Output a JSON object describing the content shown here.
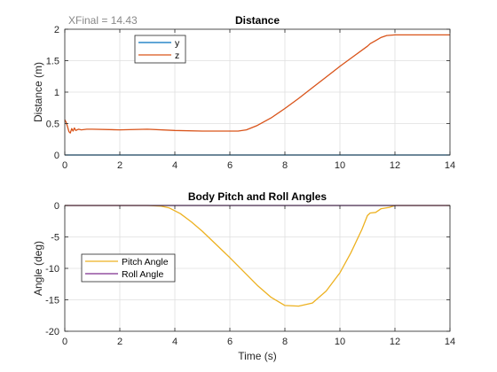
{
  "chart_data": [
    {
      "type": "line",
      "title": "Distance",
      "annotation": "XFinal = 14.43",
      "xlabel": "",
      "ylabel": "Distance (m)",
      "xlim": [
        0,
        14
      ],
      "ylim": [
        0,
        2
      ],
      "xticks": [
        "0",
        "2",
        "4",
        "6",
        "8",
        "10",
        "12",
        "14"
      ],
      "yticks": [
        "0",
        "0.5",
        "1",
        "1.5",
        "2"
      ],
      "grid": true,
      "legend_location": "top-left",
      "series": [
        {
          "name": "y",
          "color": "#0072bd",
          "x": [
            0,
            14
          ],
          "y": [
            0,
            0
          ]
        },
        {
          "name": "z",
          "color": "#d95319",
          "x": [
            0,
            0.05,
            0.1,
            0.15,
            0.2,
            0.25,
            0.3,
            0.35,
            0.4,
            0.5,
            0.6,
            0.8,
            1,
            2,
            3,
            4,
            5,
            6,
            6.3,
            6.6,
            7,
            7.5,
            8,
            8.5,
            9,
            9.5,
            10,
            10.5,
            11,
            11.1,
            11.3,
            11.5,
            11.7,
            12,
            13,
            14
          ],
          "y": [
            0.56,
            0.52,
            0.45,
            0.37,
            0.35,
            0.42,
            0.38,
            0.43,
            0.39,
            0.41,
            0.4,
            0.41,
            0.41,
            0.4,
            0.41,
            0.39,
            0.38,
            0.38,
            0.38,
            0.4,
            0.47,
            0.59,
            0.74,
            0.9,
            1.07,
            1.24,
            1.41,
            1.57,
            1.73,
            1.77,
            1.82,
            1.87,
            1.9,
            1.91,
            1.91,
            1.91
          ]
        }
      ]
    },
    {
      "type": "line",
      "title": "Body Pitch and Roll Angles",
      "xlabel": "Time (s)",
      "ylabel": "Angle (deg)",
      "xlim": [
        0,
        14
      ],
      "ylim": [
        -20,
        0
      ],
      "xticks": [
        "0",
        "2",
        "4",
        "6",
        "8",
        "10",
        "12",
        "14"
      ],
      "yticks": [
        "0",
        "-5",
        "-10",
        "-15",
        "-20"
      ],
      "grid": true,
      "legend_location": "bottom-left",
      "series": [
        {
          "name": "Pitch Angle",
          "color": "#edb120",
          "x": [
            0,
            3,
            3.5,
            3.8,
            4.2,
            4.6,
            5,
            5.5,
            6,
            6.5,
            7,
            7.5,
            8,
            8.5,
            9,
            9.5,
            10,
            10.4,
            10.8,
            11,
            11.1,
            11.3,
            11.5,
            11.8,
            12,
            14
          ],
          "y": [
            0,
            0,
            -0.1,
            -0.4,
            -1.3,
            -2.6,
            -4.1,
            -6.2,
            -8.3,
            -10.5,
            -12.7,
            -14.6,
            -15.9,
            -16.0,
            -15.5,
            -13.6,
            -10.7,
            -7.5,
            -3.8,
            -1.6,
            -1.2,
            -1.1,
            -0.5,
            -0.3,
            0,
            0
          ]
        },
        {
          "name": "Roll Angle",
          "color": "#7e2f8e",
          "x": [
            0,
            14
          ],
          "y": [
            0,
            0
          ]
        }
      ]
    }
  ]
}
